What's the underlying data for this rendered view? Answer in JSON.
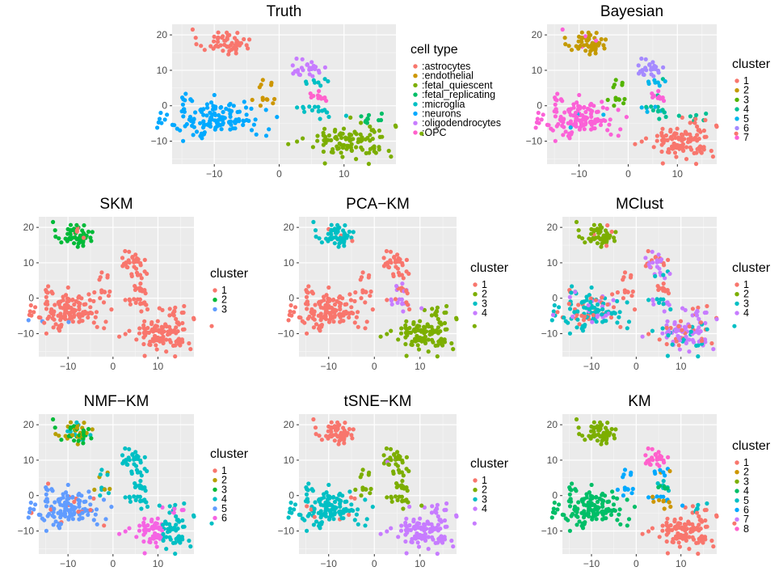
{
  "figure": {
    "description": "t-SNE projections colored by true cell type and by cluster labels from seven clustering methods"
  },
  "chart_data": [
    {
      "type": "scatter",
      "title": "Truth",
      "xlim": [
        -16.5,
        18
      ],
      "ylim": [
        -16.5,
        23
      ],
      "xticks": [
        -10,
        0,
        10
      ],
      "yticks": [
        -10,
        0,
        10,
        20
      ],
      "xtick_labels": [
        "−10",
        "0",
        "10"
      ],
      "ytick_labels": [
        "−10",
        "0",
        "10",
        "20"
      ],
      "legend_title": "cell type",
      "legend": [
        ":astrocytes",
        ":endothelial",
        ":fetal_quiescent",
        ":fetal_replicating",
        ":microglia",
        ":neurons",
        ":oligodendrocytes",
        ":OPC"
      ],
      "legend_colors": [
        "#F8766D",
        "#CD9600",
        "#7CAE00",
        "#00BE67",
        "#00BFC4",
        "#00A9FF",
        "#C77CFF",
        "#FF61CC"
      ]
    },
    {
      "type": "scatter",
      "title": "Bayesian",
      "xlim": [
        -16.5,
        18
      ],
      "ylim": [
        -16.5,
        23
      ],
      "xticks": [
        -10,
        0,
        10
      ],
      "yticks": [
        -10,
        0,
        10,
        20
      ],
      "xtick_labels": [
        "−10",
        "0",
        "10"
      ],
      "ytick_labels": [
        "−10",
        "0",
        "10",
        "20"
      ],
      "legend_title": "cluster",
      "legend": [
        "1",
        "2",
        "3",
        "4",
        "5",
        "6",
        "7"
      ],
      "legend_colors": [
        "#F8766D",
        "#C49A00",
        "#53B400",
        "#00C094",
        "#00B6EB",
        "#A58AFF",
        "#FB61D7"
      ]
    },
    {
      "type": "scatter",
      "title": "SKM",
      "xlim": [
        -16.5,
        18
      ],
      "ylim": [
        -16.5,
        23
      ],
      "xticks": [
        -10,
        0,
        10
      ],
      "yticks": [
        -10,
        0,
        10,
        20
      ],
      "xtick_labels": [
        "−10",
        "0",
        "10"
      ],
      "ytick_labels": [
        "−10",
        "0",
        "10",
        "20"
      ],
      "legend_title": "cluster",
      "legend": [
        "1",
        "2",
        "3"
      ],
      "legend_colors": [
        "#F8766D",
        "#00BA38",
        "#619CFF"
      ]
    },
    {
      "type": "scatter",
      "title": "PCA−KM",
      "xlim": [
        -16.5,
        18
      ],
      "ylim": [
        -16.5,
        23
      ],
      "xticks": [
        -10,
        0,
        10
      ],
      "yticks": [
        -10,
        0,
        10,
        20
      ],
      "xtick_labels": [
        "−10",
        "0",
        "10"
      ],
      "ytick_labels": [
        "−10",
        "0",
        "10",
        "20"
      ],
      "legend_title": "cluster",
      "legend": [
        "1",
        "2",
        "3",
        "4"
      ],
      "legend_colors": [
        "#F8766D",
        "#7CAE00",
        "#00BFC4",
        "#C77CFF"
      ]
    },
    {
      "type": "scatter",
      "title": "MClust",
      "xlim": [
        -16.5,
        18
      ],
      "ylim": [
        -16.5,
        23
      ],
      "xticks": [
        -10,
        0,
        10
      ],
      "yticks": [
        -10,
        0,
        10,
        20
      ],
      "xtick_labels": [
        "−10",
        "0",
        "10"
      ],
      "ytick_labels": [
        "−10",
        "0",
        "10",
        "20"
      ],
      "legend_title": "cluster",
      "legend": [
        "1",
        "2",
        "3",
        "4"
      ],
      "legend_colors": [
        "#F8766D",
        "#7CAE00",
        "#00BFC4",
        "#C77CFF"
      ]
    },
    {
      "type": "scatter",
      "title": "NMF−KM",
      "xlim": [
        -16.5,
        18
      ],
      "ylim": [
        -16.5,
        23
      ],
      "xticks": [
        -10,
        0,
        10
      ],
      "yticks": [
        -10,
        0,
        10,
        20
      ],
      "xtick_labels": [
        "−10",
        "0",
        "10"
      ],
      "ytick_labels": [
        "−10",
        "0",
        "10",
        "20"
      ],
      "legend_title": "cluster",
      "legend": [
        "1",
        "2",
        "3",
        "4",
        "5",
        "6"
      ],
      "legend_colors": [
        "#F8766D",
        "#B79F00",
        "#00BA38",
        "#00BFC4",
        "#619CFF",
        "#F564E3"
      ]
    },
    {
      "type": "scatter",
      "title": "tSNE−KM",
      "xlim": [
        -16.5,
        18
      ],
      "ylim": [
        -16.5,
        23
      ],
      "xticks": [
        -10,
        0,
        10
      ],
      "yticks": [
        -10,
        0,
        10,
        20
      ],
      "xtick_labels": [
        "−10",
        "0",
        "10"
      ],
      "ytick_labels": [
        "−10",
        "0",
        "10",
        "20"
      ],
      "legend_title": "cluster",
      "legend": [
        "1",
        "2",
        "3",
        "4"
      ],
      "legend_colors": [
        "#F8766D",
        "#7CAE00",
        "#00BFC4",
        "#C77CFF"
      ]
    },
    {
      "type": "scatter",
      "title": "KM",
      "xlim": [
        -16.5,
        18
      ],
      "ylim": [
        -16.5,
        23
      ],
      "xticks": [
        -10,
        0,
        10
      ],
      "yticks": [
        -10,
        0,
        10,
        20
      ],
      "xtick_labels": [
        "−10",
        "0",
        "10"
      ],
      "ytick_labels": [
        "−10",
        "0",
        "10",
        "20"
      ],
      "legend_title": "cluster",
      "legend": [
        "1",
        "2",
        "3",
        "4",
        "5",
        "6",
        "7",
        "8"
      ],
      "legend_colors": [
        "#F8766D",
        "#CD9600",
        "#7CAE00",
        "#00BE67",
        "#00BFC4",
        "#00A9FF",
        "#C77CFF",
        "#FF61CC"
      ]
    }
  ]
}
